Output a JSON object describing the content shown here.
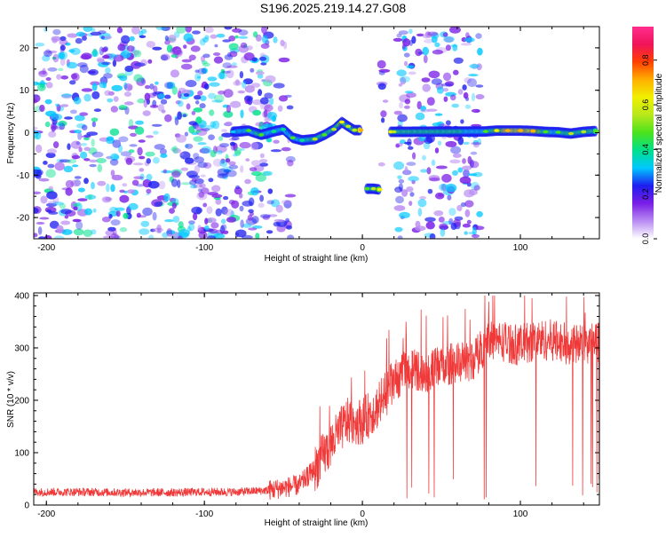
{
  "title": "S196.2025.219.14.27.G08",
  "chart_data": [
    {
      "type": "heatmap",
      "xlabel": "Height of straight line (km)",
      "ylabel": "Frequency (Hz)",
      "xlim": [
        -208,
        150
      ],
      "ylim": [
        -25,
        25
      ],
      "xticks": [
        -200,
        -100,
        0,
        100
      ],
      "yticks": [
        -20,
        -10,
        0,
        10,
        20
      ],
      "colorbar": {
        "label": "Normalized spectral amplitude",
        "range": [
          0,
          0.95
        ],
        "ticks": [
          0,
          0.2,
          0.4,
          0.6,
          0.8
        ],
        "tick_labels": [
          "0.0",
          "0.2",
          "0.4",
          "0.6",
          "0.8"
        ],
        "colors": [
          "#ffffff",
          "#b98cf2",
          "#7a1ee6",
          "#1e1ef0",
          "#00c8ff",
          "#00e08c",
          "#4be21c",
          "#b8e81c",
          "#f0f000",
          "#ffb000",
          "#ff4000",
          "#f0145a",
          "#ff2d8c"
        ]
      },
      "noise_regions": [
        {
          "x": [
            -208,
            -55
          ],
          "y": [
            -25,
            25
          ],
          "intensity": 0.55
        },
        {
          "x": [
            -55,
            -45
          ],
          "y": [
            -25,
            25
          ],
          "intensity": 0.3
        },
        {
          "x": [
            12,
            15
          ],
          "y": [
            -25,
            25
          ],
          "intensity": 0.35
        },
        {
          "x": [
            22,
            75
          ],
          "y": [
            -25,
            25
          ],
          "intensity": 0.5
        }
      ],
      "signal_track": [
        {
          "x": -82,
          "y": 0.2,
          "a": 0.35
        },
        {
          "x": -72,
          "y": 0.5,
          "a": 0.45
        },
        {
          "x": -64,
          "y": -0.5,
          "a": 0.5
        },
        {
          "x": -56,
          "y": 0.3,
          "a": 0.4
        },
        {
          "x": -50,
          "y": 0.8,
          "a": 0.4
        },
        {
          "x": -44,
          "y": -1.2,
          "a": 0.45
        },
        {
          "x": -38,
          "y": -1.8,
          "a": 0.4
        },
        {
          "x": -30,
          "y": -1.5,
          "a": 0.55
        },
        {
          "x": -24,
          "y": -0.5,
          "a": 0.5
        },
        {
          "x": -18,
          "y": 0.8,
          "a": 0.55
        },
        {
          "x": -13,
          "y": 2.5,
          "a": 0.6
        },
        {
          "x": -9,
          "y": 1.5,
          "a": 0.55
        },
        {
          "x": -5,
          "y": 0.6,
          "a": 0.55
        },
        {
          "x": -1,
          "y": 0.6,
          "a": 0.75
        },
        {
          "x": 3,
          "y": -13.2,
          "a": 0.45
        },
        {
          "x": 7,
          "y": -13.2,
          "a": 0.55
        },
        {
          "x": 11,
          "y": -13.4,
          "a": 0.6
        },
        {
          "x": 18,
          "y": 0.2,
          "a": 0.6
        },
        {
          "x": 20,
          "y": 0.2,
          "a": 0.55
        },
        {
          "x": 78,
          "y": 0.3,
          "a": 0.45
        },
        {
          "x": 85,
          "y": 0.5,
          "a": 0.6
        },
        {
          "x": 92,
          "y": 0.5,
          "a": 0.75
        },
        {
          "x": 100,
          "y": 0.5,
          "a": 0.7
        },
        {
          "x": 108,
          "y": 0.4,
          "a": 0.75
        },
        {
          "x": 116,
          "y": 0.2,
          "a": 0.5
        },
        {
          "x": 124,
          "y": 0.1,
          "a": 0.45
        },
        {
          "x": 132,
          "y": -0.2,
          "a": 0.55
        },
        {
          "x": 140,
          "y": 0.2,
          "a": 0.55
        },
        {
          "x": 148,
          "y": 0.4,
          "a": 0.5
        }
      ]
    },
    {
      "type": "line",
      "xlabel": "Height of straight line (km)",
      "ylabel": "SNR (10 * v/v)",
      "xlim": [
        -208,
        150
      ],
      "ylim": [
        0,
        405
      ],
      "xticks": [
        -200,
        -100,
        0,
        100
      ],
      "yticks": [
        0,
        100,
        200,
        300,
        400
      ],
      "series": [
        {
          "color": "#f03a3a",
          "x": [
            -208,
            -180,
            -150,
            -120,
            -100,
            -80,
            -60,
            -40,
            -30,
            -20,
            -10,
            0,
            10,
            20,
            30,
            40,
            50,
            60,
            70,
            80,
            90,
            100,
            110,
            120,
            130,
            140,
            150
          ],
          "y": [
            25,
            25,
            24,
            24,
            25,
            25,
            28,
            38,
            70,
            115,
            160,
            160,
            190,
            235,
            262,
            252,
            265,
            272,
            275,
            318,
            312,
            305,
            315,
            315,
            308,
            305,
            312
          ]
        }
      ]
    }
  ]
}
